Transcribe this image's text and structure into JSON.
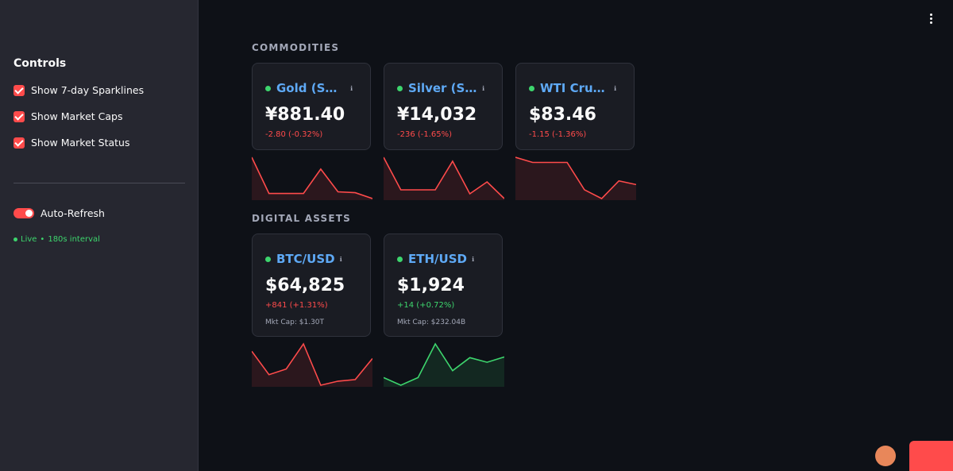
{
  "sidebar": {
    "title": "Controls",
    "checkboxes": [
      "Show 7-day Sparklines",
      "Show Market Caps",
      "Show Market Status"
    ],
    "toggle": "Auto-Refresh",
    "status": "Live",
    "interval": "180s interval"
  },
  "sections": [
    {
      "title": "COMMODITIES",
      "cards": [
        {
          "name": "Gold (SHFE)",
          "price": "¥881.40",
          "change": "-2.80 (-0.32%)",
          "color": "#ff4b4b",
          "sparkline": [
            891.2,
            882.6,
            882.6,
            882.6,
            888.4,
            883.0,
            882.8,
            881.4
          ]
        },
        {
          "name": "Silver (SHFE)",
          "price": "¥14,032",
          "change": "-236 (-1.65%)",
          "color": "#ff4b4b",
          "sparkline": [
            14552,
            14142,
            14142,
            14142,
            14502,
            14092,
            14242,
            14032
          ]
        },
        {
          "name": "WTI Crude",
          "price": "$83.46",
          "change": "-1.15 (-1.36%)",
          "color": "#ff4b4b",
          "sparkline": [
            85.31,
            84.96,
            84.96,
            84.96,
            83.11,
            82.51,
            83.71,
            83.46
          ]
        }
      ]
    },
    {
      "title": "DIGITAL ASSETS",
      "cards": [
        {
          "name": "BTC/USD",
          "price": "$64,825",
          "change": "+841 (+1.31%)",
          "market_cap": "Mkt Cap: $1.30T",
          "color": "#ff4b4b",
          "sparkline": [
            65275,
            63825,
            64175,
            65725,
            63175,
            63425,
            63525,
            64825
          ]
        },
        {
          "name": "ETH/USD",
          "price": "$1,924",
          "change": "+14 (+0.72%)",
          "market_cap": "Mkt Cap: $232.04B",
          "color": "#3dd56d",
          "sparkline": [
            1870,
            1850,
            1870,
            1958,
            1888,
            1922,
            1910,
            1924
          ]
        }
      ]
    }
  ]
}
